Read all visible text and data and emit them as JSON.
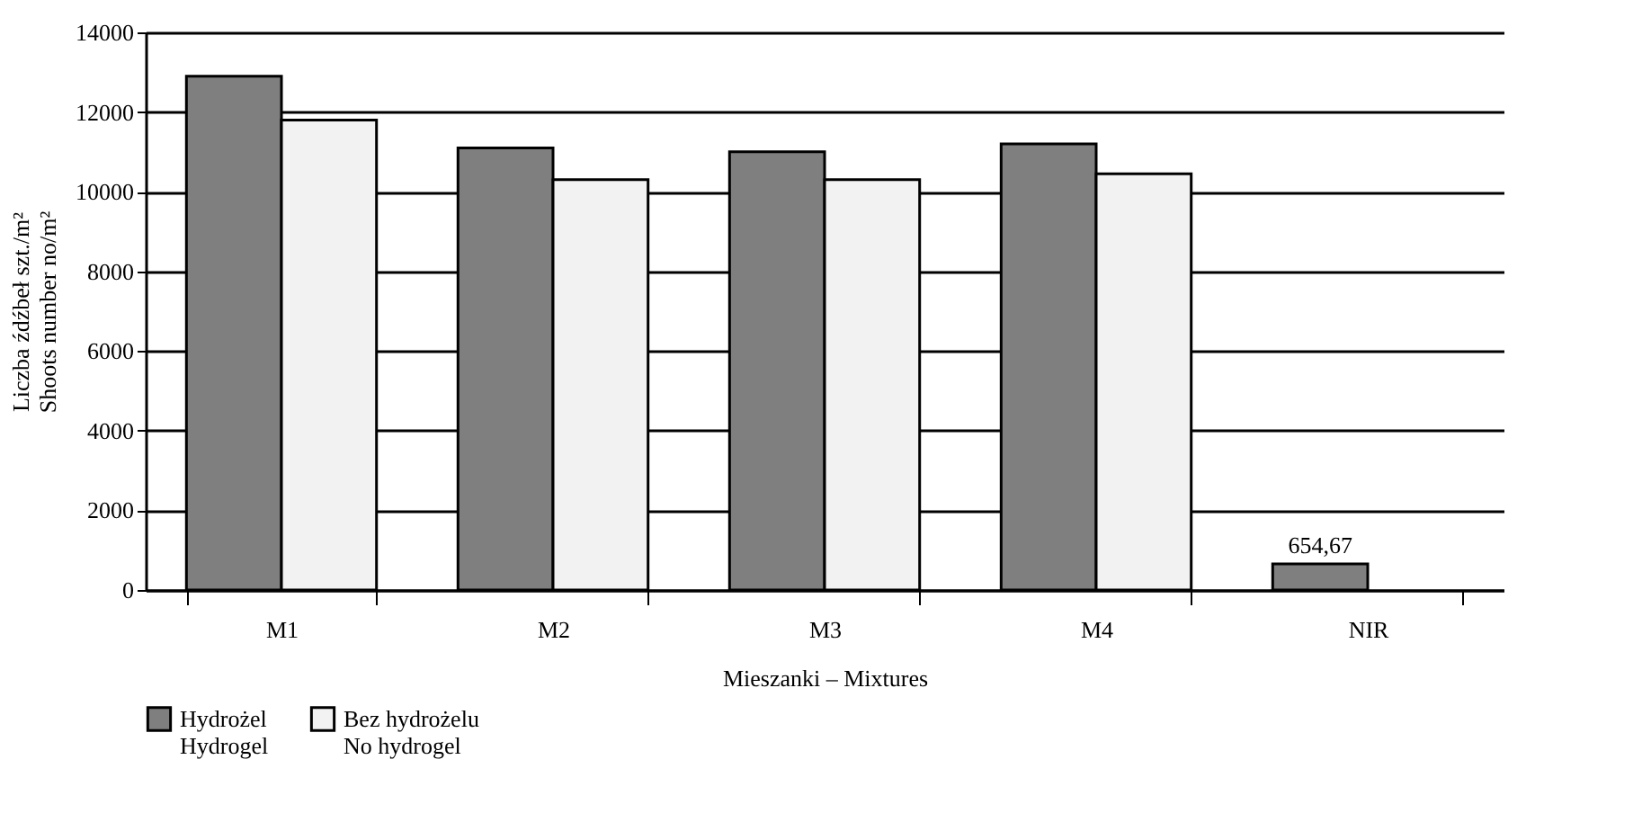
{
  "chart_data": {
    "type": "bar",
    "xlabel": "Mieszanki – Mixtures",
    "ylabel": "Liczba źdźbeł szt./m²\nShoots number no/m²",
    "categories": [
      "M1",
      "M2",
      "M3",
      "M4",
      "NIR"
    ],
    "series": [
      {
        "name": "Hydrożel\nHydrogel",
        "color": "#7f7f7f",
        "values": [
          12900,
          11100,
          11000,
          11200,
          654.67
        ],
        "value_labels": [
          null,
          null,
          null,
          null,
          "654,67"
        ]
      },
      {
        "name": "Bez hydrożelu\nNo hydrogel",
        "color": "#f2f2f2",
        "values": [
          11800,
          10300,
          10300,
          10450,
          null
        ]
      }
    ],
    "ylim": [
      0,
      14000
    ],
    "yticks": [
      0,
      2000,
      4000,
      6000,
      8000,
      10000,
      12000,
      14000
    ],
    "grid": "y",
    "legend": "bottom"
  }
}
